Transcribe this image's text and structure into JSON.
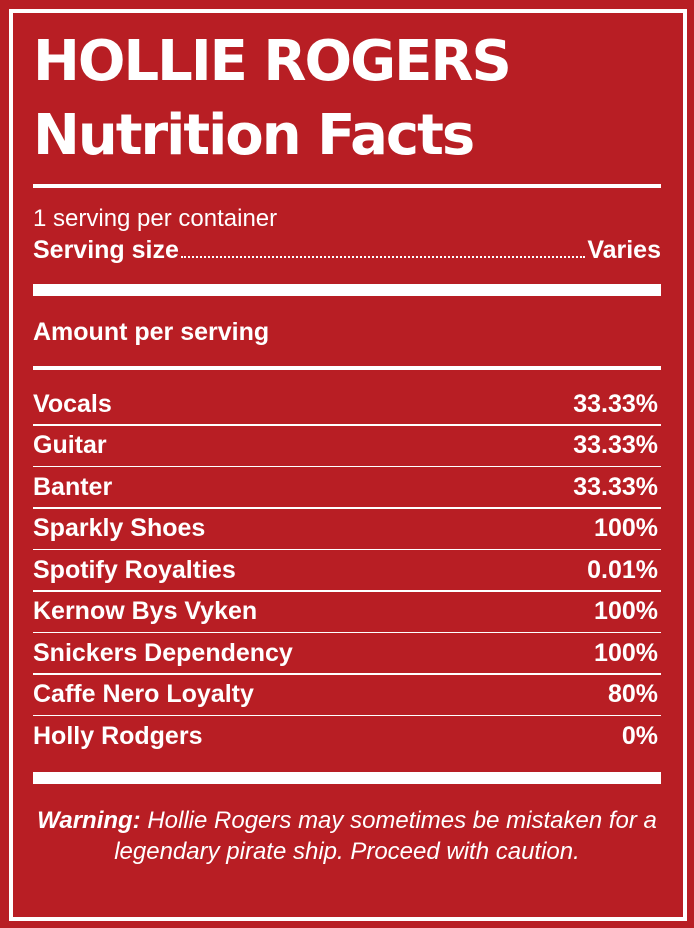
{
  "header": {
    "brand": "HOLLIE ROGERS",
    "title": "Nutrition Facts"
  },
  "serving": {
    "per_container": "1 serving per container",
    "size_label": "Serving size",
    "size_value": "Varies"
  },
  "amount_header": "Amount per serving",
  "nutrients": [
    {
      "name": "Vocals",
      "value": "33.33%"
    },
    {
      "name": "Guitar",
      "value": "33.33%"
    },
    {
      "name": "Banter",
      "value": "33.33%"
    },
    {
      "name": "Sparkly Shoes",
      "value": "100%"
    },
    {
      "name": "Spotify Royalties",
      "value": "0.01%"
    },
    {
      "name": "Kernow Bys Vyken",
      "value": "100%"
    },
    {
      "name": "Snickers Dependency",
      "value": "100%"
    },
    {
      "name": "Caffe Nero Loyalty",
      "value": "80%"
    },
    {
      "name": "Holly Rodgers",
      "value": "0%"
    }
  ],
  "warning": {
    "label": "Warning:",
    "text": " Hollie Rogers may sometimes be mistaken for a legendary pirate ship. Proceed with caution."
  },
  "colors": {
    "background": "#b81e24",
    "foreground": "#ffffff"
  }
}
